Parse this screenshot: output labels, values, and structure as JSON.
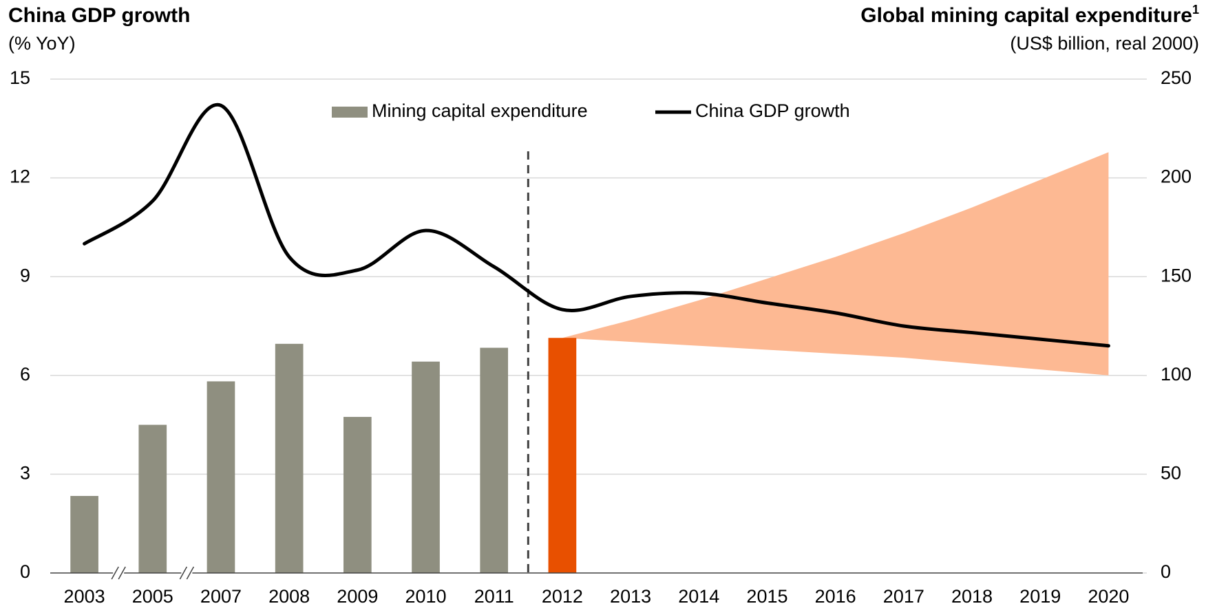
{
  "chart_data": {
    "type": "bar_line",
    "title_left": "China GDP growth",
    "subtitle_left": "(% YoY)",
    "title_right": "Global mining capital expenditure",
    "title_right_note": "1",
    "subtitle_right": "(US$ billion, real 2000)",
    "categories": [
      "2003",
      "2005",
      "2007",
      "2008",
      "2009",
      "2010",
      "2011",
      "2012",
      "2013",
      "2014",
      "2015",
      "2016",
      "2017",
      "2018",
      "2019",
      "2020"
    ],
    "series": [
      {
        "name": "Mining capital expenditure",
        "type": "bar",
        "axis": "y2",
        "color": "#8f8f80",
        "colors": [
          "#8f8f80",
          "#8f8f80",
          "#8f8f80",
          "#8f8f80",
          "#8f8f80",
          "#8f8f80",
          "#8f8f80",
          "#e85000",
          null,
          null,
          null,
          null,
          null,
          null,
          null,
          null
        ],
        "values": [
          39,
          75,
          97,
          116,
          79,
          107,
          114,
          119,
          null,
          null,
          null,
          null,
          null,
          null,
          null,
          null
        ]
      },
      {
        "name": "China GDP growth",
        "type": "line",
        "color": "#000000",
        "values": [
          10.0,
          11.3,
          14.2,
          9.6,
          9.2,
          10.4,
          9.3,
          8.0,
          8.4,
          8.5,
          8.2,
          7.9,
          7.5,
          7.3,
          7.1,
          6.9
        ]
      }
    ],
    "range": {
      "axis": "y2",
      "color": "#fdb993",
      "upper": [
        null,
        null,
        null,
        null,
        null,
        null,
        null,
        119,
        128,
        138,
        149,
        160,
        172,
        185,
        199,
        213
      ],
      "lower": [
        null,
        null,
        null,
        null,
        null,
        null,
        null,
        119,
        117,
        115,
        113,
        111,
        109,
        106,
        103,
        100
      ]
    },
    "ylim": [
      0,
      15
    ],
    "yticks": [
      0,
      3,
      6,
      9,
      12,
      15
    ],
    "y2lim": [
      0,
      250
    ],
    "y2ticks": [
      0,
      50,
      100,
      150,
      200,
      250
    ],
    "grid": true,
    "legend": "top"
  }
}
